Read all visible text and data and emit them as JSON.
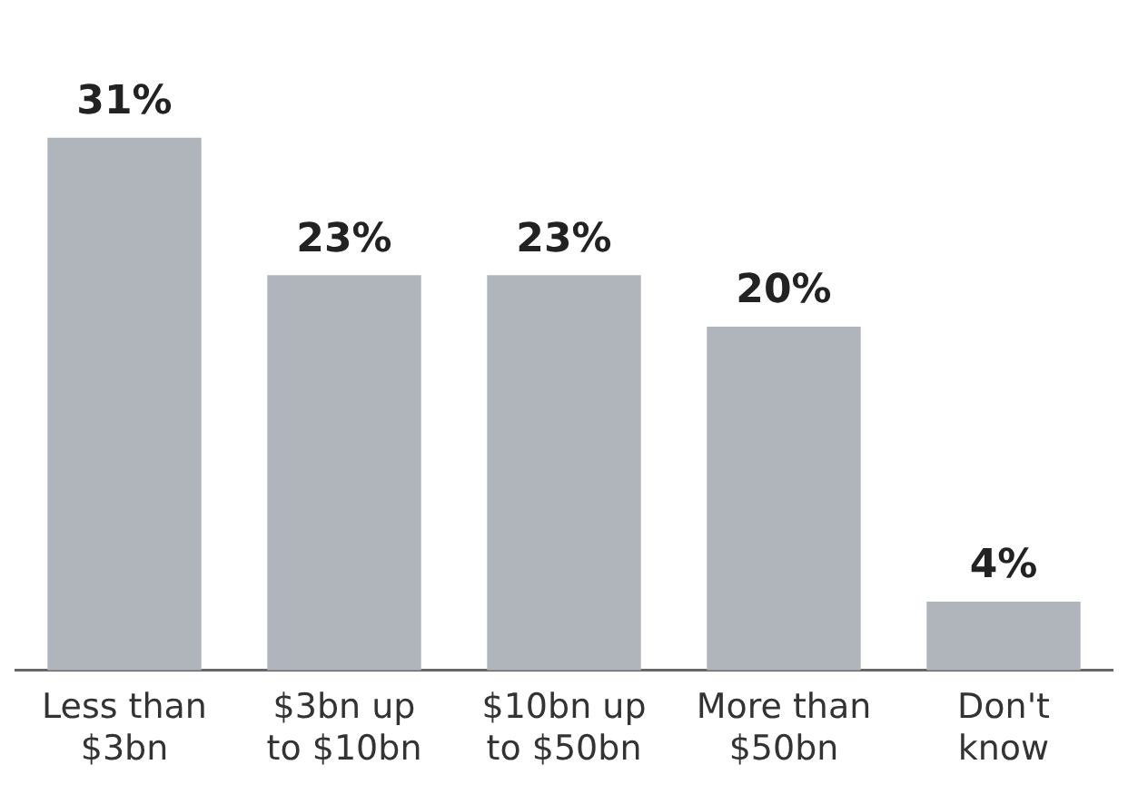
{
  "chart_data": {
    "type": "bar",
    "categories": [
      "Less than $3bn",
      "$3bn up to $10bn",
      "$10bn up to $50bn",
      "More than $50bn",
      "Don't know"
    ],
    "values": [
      31,
      23,
      23,
      20,
      4
    ],
    "value_labels": [
      "31%",
      "23%",
      "23%",
      "20%",
      "4%"
    ],
    "color": "#b0b4bb"
  }
}
